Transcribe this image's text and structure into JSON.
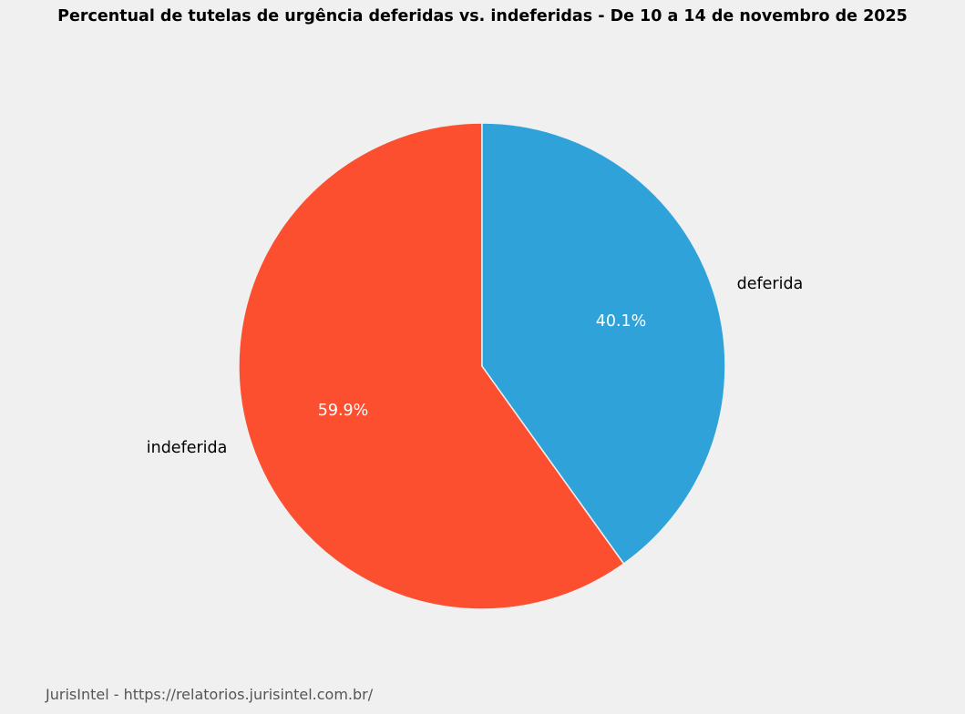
{
  "chart_data": {
    "type": "pie",
    "title": "Percentual de tutelas de urgência deferidas vs. indeferidas - De 10 a 14 de novembro de 2025",
    "start_angle": 90,
    "direction": "counterclockwise",
    "slices": [
      {
        "label": "indeferida",
        "value": 59.9,
        "pct_label": "59.9%",
        "color": "#fc4f30"
      },
      {
        "label": "deferida",
        "value": 40.1,
        "pct_label": "40.1%",
        "color": "#30a2da"
      }
    ]
  },
  "footer": "JurisIntel - https://relatorios.jurisintel.com.br/"
}
